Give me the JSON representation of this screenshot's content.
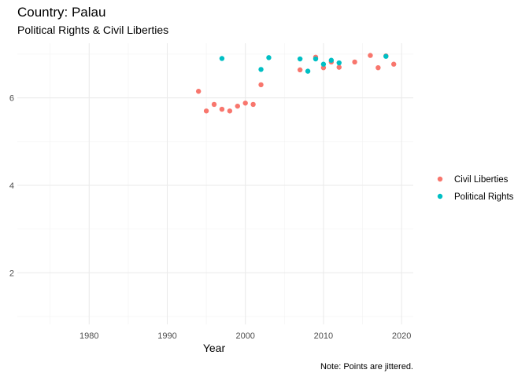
{
  "chart_data": {
    "type": "scatter",
    "title": "Country: Palau",
    "subtitle": "Political Rights & Civil Liberties",
    "xlabel": "Year",
    "ylabel": "",
    "caption": "Note: Points are jittered.",
    "xlim": [
      1970.8,
      2021.5
    ],
    "ylim": [
      0.82,
      7.25
    ],
    "x_ticks": [
      1980,
      1990,
      2000,
      2010,
      2020
    ],
    "y_ticks": [
      2,
      4,
      6
    ],
    "grid": true,
    "legend_position": "right",
    "series": [
      {
        "name": "Civil Liberties",
        "color": "#F8766D",
        "points": [
          [
            1994,
            6.15
          ],
          [
            1995,
            5.7
          ],
          [
            1996,
            5.85
          ],
          [
            1997,
            5.74
          ],
          [
            1998,
            5.7
          ],
          [
            1999,
            5.81
          ],
          [
            2000,
            5.88
          ],
          [
            2001,
            5.85
          ],
          [
            2002,
            6.3
          ],
          [
            2007,
            6.64
          ],
          [
            2009,
            6.93
          ],
          [
            2010,
            6.69
          ],
          [
            2011,
            6.82
          ],
          [
            2012,
            6.7
          ],
          [
            2014,
            6.82
          ],
          [
            2016,
            6.97
          ],
          [
            2017,
            6.69
          ],
          [
            2018,
            6.96
          ],
          [
            2019,
            6.77
          ]
        ]
      },
      {
        "name": "Political Rights",
        "color": "#00BFC4",
        "points": [
          [
            1997,
            6.9
          ],
          [
            2002,
            6.65
          ],
          [
            2003,
            6.92
          ],
          [
            2007,
            6.89
          ],
          [
            2008,
            6.61
          ],
          [
            2009,
            6.89
          ],
          [
            2010,
            6.77
          ],
          [
            2011,
            6.86
          ],
          [
            2012,
            6.8
          ],
          [
            2018,
            6.95
          ]
        ]
      }
    ]
  }
}
